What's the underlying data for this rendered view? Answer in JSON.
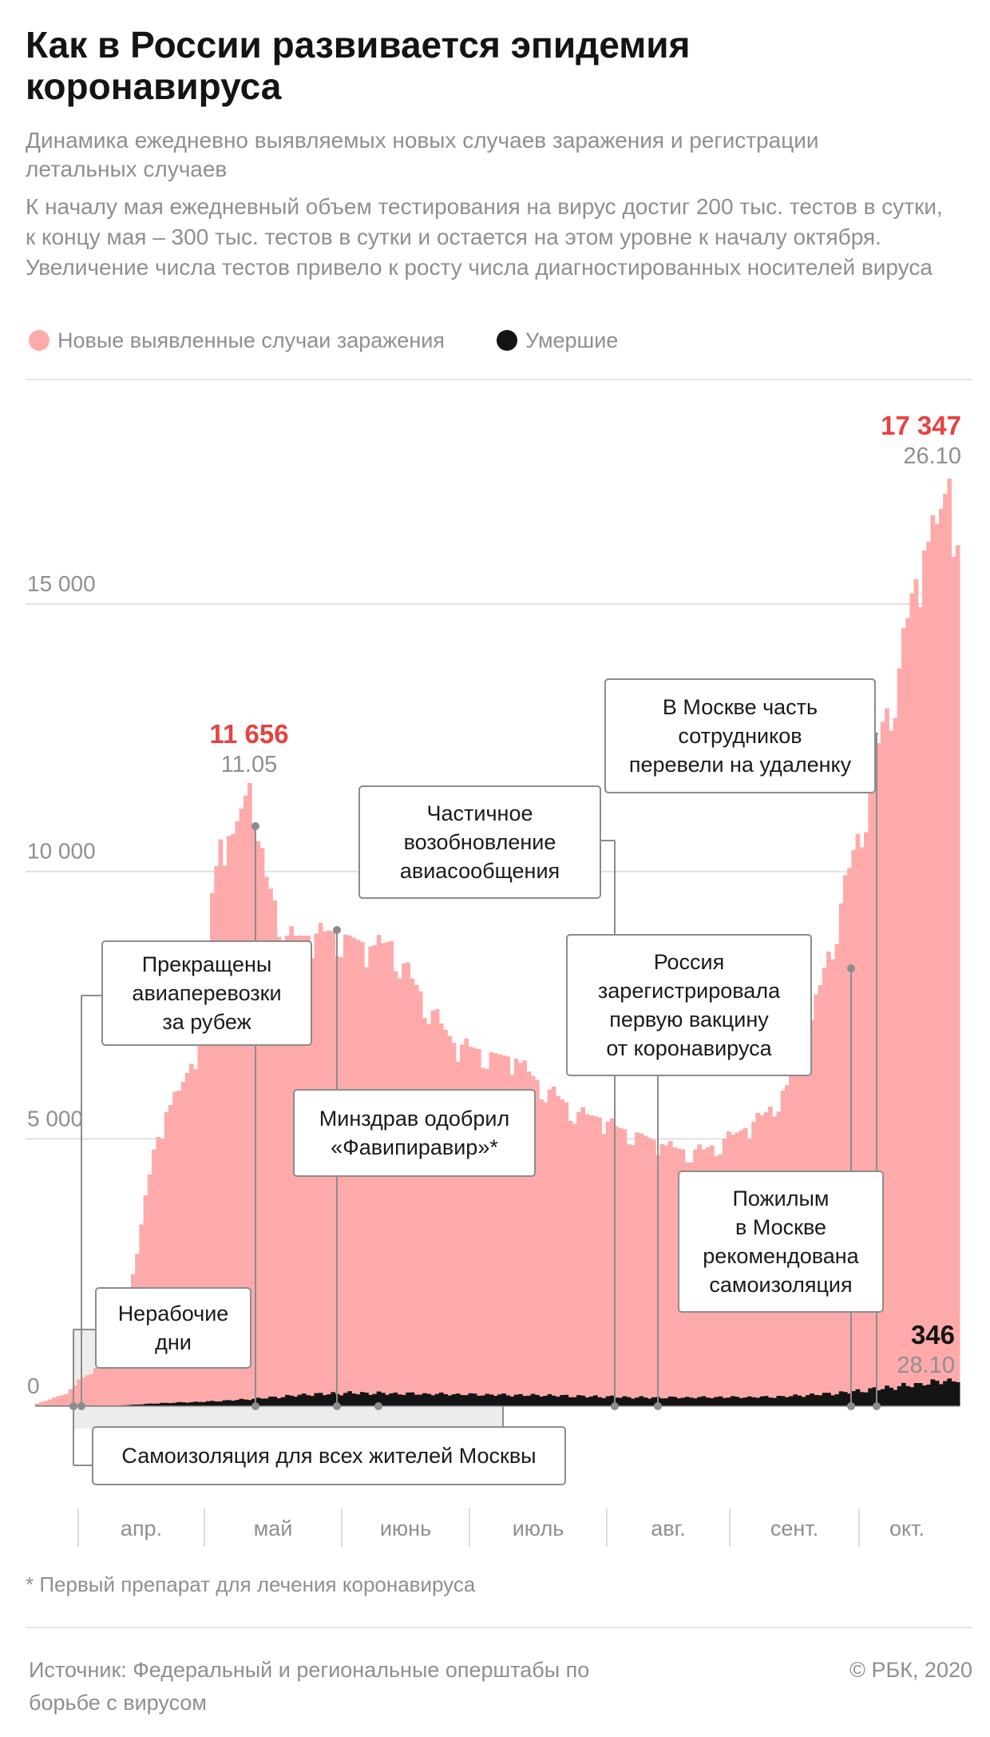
{
  "title": "Как в России развивается эпидемия коронавируса",
  "subtitle": "Динамика ежедневно выявляемых новых случаев заражения и регистрации летальных случаев",
  "description": "К началу мая ежедневный объем тестирования на вирус достиг 200 тыс. тестов в сутки, к концу мая – 300 тыс. тестов в сутки и остается на этом уровне к началу октября. Увеличение числа тестов привело к росту числа диагностированных носителей вируса",
  "legend": {
    "cases_label": "Новые выявленные случаи заражения",
    "deaths_label": "Умершие",
    "cases_color": "#ffaaaa",
    "deaths_color": "#141414"
  },
  "footnote": "* Первый препарат для лечения коронавируса",
  "source": "Источник: Федеральный и региональные оперштабы по борьбе с вирусом",
  "copyright": "© РБК, 2020",
  "colors": {
    "cases": "#ffaaaa",
    "deaths": "#141414",
    "highlight": "#e8413f",
    "label": "#8f8f8f",
    "grid": "#e0e0e0"
  },
  "chart_data": {
    "type": "bar",
    "x_start": "2020-03-21",
    "x_end": "2020-10-28",
    "ylim": [
      0,
      17347
    ],
    "yticks": [
      {
        "value": 0,
        "label": "0"
      },
      {
        "value": 5000,
        "label": "5 000"
      },
      {
        "value": 10000,
        "label": "10 000"
      },
      {
        "value": 15000,
        "label": "15 000"
      }
    ],
    "months": [
      "апр.",
      "май",
      "июнь",
      "июль",
      "авг.",
      "сент.",
      "окт."
    ],
    "series": [
      {
        "name": "Новые выявленные случаи заражения",
        "anchors": [
          [
            "2020-03-21",
            50
          ],
          [
            "2020-03-25",
            160
          ],
          [
            "2020-03-28",
            230
          ],
          [
            "2020-03-31",
            500
          ],
          [
            "2020-04-03",
            600
          ],
          [
            "2020-04-06",
            950
          ],
          [
            "2020-04-09",
            1450
          ],
          [
            "2020-04-12",
            2200
          ],
          [
            "2020-04-15",
            3400
          ],
          [
            "2020-04-18",
            4800
          ],
          [
            "2020-04-21",
            5500
          ],
          [
            "2020-04-24",
            5900
          ],
          [
            "2020-04-27",
            6400
          ],
          [
            "2020-04-30",
            7100
          ],
          [
            "2020-05-02",
            9600
          ],
          [
            "2020-05-04",
            10600
          ],
          [
            "2020-05-07",
            10700
          ],
          [
            "2020-05-11",
            11656
          ],
          [
            "2020-05-12",
            10900
          ],
          [
            "2020-05-15",
            9900
          ],
          [
            "2020-05-20",
            8800
          ],
          [
            "2020-05-25",
            8800
          ],
          [
            "2020-05-30",
            8900
          ],
          [
            "2020-06-04",
            8800
          ],
          [
            "2020-06-09",
            8600
          ],
          [
            "2020-06-14",
            8700
          ],
          [
            "2020-06-19",
            8000
          ],
          [
            "2020-06-24",
            7400
          ],
          [
            "2020-06-29",
            6800
          ],
          [
            "2020-07-04",
            6700
          ],
          [
            "2020-07-09",
            6600
          ],
          [
            "2020-07-14",
            6500
          ],
          [
            "2020-07-19",
            6100
          ],
          [
            "2020-07-24",
            5800
          ],
          [
            "2020-07-29",
            5500
          ],
          [
            "2020-08-03",
            5400
          ],
          [
            "2020-08-08",
            5200
          ],
          [
            "2020-08-13",
            5100
          ],
          [
            "2020-08-18",
            4900
          ],
          [
            "2020-08-23",
            4800
          ],
          [
            "2020-08-28",
            4800
          ],
          [
            "2020-09-02",
            5000
          ],
          [
            "2020-09-07",
            5200
          ],
          [
            "2020-09-12",
            5500
          ],
          [
            "2020-09-17",
            6000
          ],
          [
            "2020-09-22",
            6900
          ],
          [
            "2020-09-26",
            8200
          ],
          [
            "2020-09-30",
            9400
          ],
          [
            "2020-10-03",
            10400
          ],
          [
            "2020-10-07",
            11600
          ],
          [
            "2020-10-10",
            12800
          ],
          [
            "2020-10-14",
            13800
          ],
          [
            "2020-10-17",
            15200
          ],
          [
            "2020-10-20",
            16000
          ],
          [
            "2020-10-23",
            16500
          ],
          [
            "2020-10-26",
            17347
          ],
          [
            "2020-10-28",
            16100
          ]
        ]
      },
      {
        "name": "Умершие",
        "anchors": [
          [
            "2020-03-21",
            0
          ],
          [
            "2020-03-30",
            2
          ],
          [
            "2020-04-10",
            10
          ],
          [
            "2020-04-20",
            40
          ],
          [
            "2020-05-01",
            60
          ],
          [
            "2020-05-11",
            90
          ],
          [
            "2020-05-25",
            150
          ],
          [
            "2020-06-05",
            170
          ],
          [
            "2020-06-20",
            160
          ],
          [
            "2020-07-05",
            150
          ],
          [
            "2020-07-20",
            140
          ],
          [
            "2020-08-01",
            125
          ],
          [
            "2020-08-15",
            110
          ],
          [
            "2020-09-01",
            115
          ],
          [
            "2020-09-15",
            120
          ],
          [
            "2020-09-30",
            170
          ],
          [
            "2020-10-10",
            230
          ],
          [
            "2020-10-20",
            290
          ],
          [
            "2020-10-28",
            346
          ]
        ]
      }
    ],
    "peaks": [
      {
        "value_label": "11 656",
        "date_label": "11.05",
        "color": "#e8413f",
        "date": "2020-05-11",
        "value": 11656
      },
      {
        "value_label": "17 347",
        "date_label": "26.10",
        "color": "#e8413f",
        "date": "2020-10-26",
        "value": 17347
      },
      {
        "value_label": "346",
        "date_label": "28.10",
        "color": "#141414",
        "date": "2020-10-28",
        "value": 346
      }
    ],
    "annotations": [
      {
        "lines": [
          "Нерабочие",
          "дни"
        ]
      },
      {
        "lines": [
          "Самоизоляция для всех жителей Москвы"
        ]
      },
      {
        "lines": [
          "Прекращены",
          "авиаперевозки",
          "за рубеж"
        ]
      },
      {
        "lines": [
          "Минздрав одобрил",
          "«Фавипиравир»*"
        ]
      },
      {
        "lines": [
          "Частичное",
          "возобновление",
          "авиасообщения"
        ]
      },
      {
        "lines": [
          "Россия",
          "зарегистрировала",
          "первую вакцину",
          "от коронавируса"
        ]
      },
      {
        "lines": [
          "В Москве часть",
          "сотрудников",
          "перевели на удаленку"
        ]
      },
      {
        "lines": [
          "Пожилым",
          "в Москве",
          "рекомендована",
          "самоизоляция"
        ]
      }
    ]
  }
}
